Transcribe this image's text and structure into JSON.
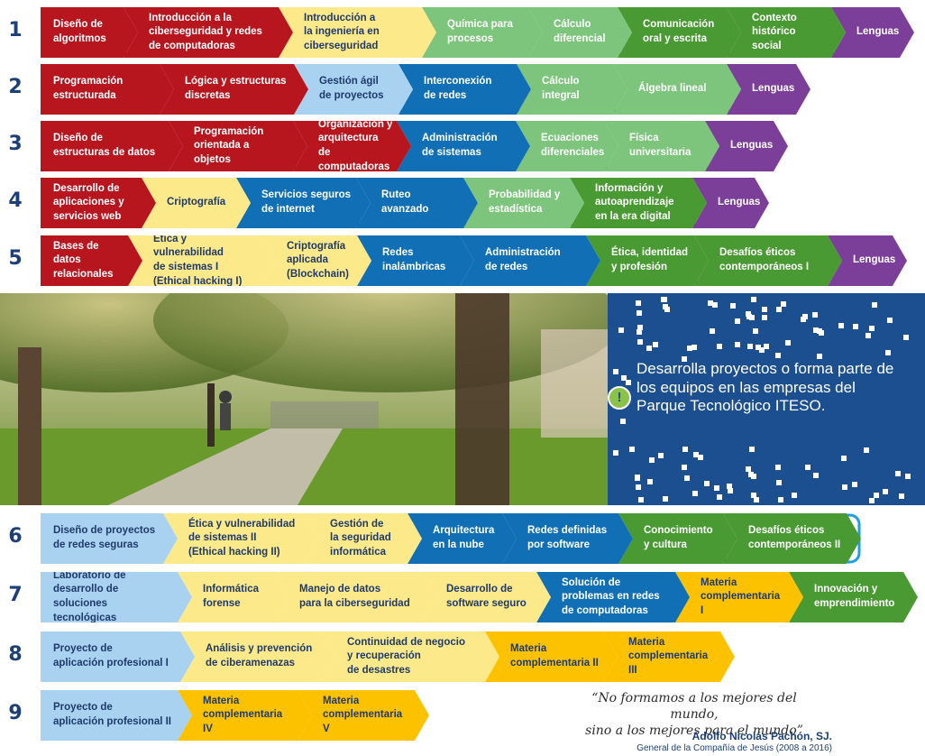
{
  "colors": {
    "red": "#b8161f",
    "yellow": "#fbe98a",
    "light_green": "#7dc47c",
    "green": "#4a9a34",
    "purple": "#7b3f99",
    "light_blue": "#a9d2f0",
    "blue": "#1170b5",
    "gold": "#fcc200",
    "annotation_blue": "#1e9ee8"
  },
  "rows": [
    {
      "number": "1",
      "items": [
        {
          "label": "Diseño de\nalgoritmos",
          "color": "red",
          "crossed": true
        },
        {
          "label": "Introducción a la\nciberseguridad y redes\nde computadoras",
          "color": "red",
          "crossed": true
        },
        {
          "label": "Introducción a\nla ingeniería en\nciberseguridad",
          "color": "yellow",
          "crossed": true
        },
        {
          "label": "Química para\nprocesos",
          "color": "light_green",
          "crossed": false
        },
        {
          "label": "Cálculo\ndiferencial",
          "color": "light_green",
          "crossed": true
        },
        {
          "label": "Comunicación\noral y escrita",
          "color": "green",
          "crossed": true
        },
        {
          "label": "Contexto\nhistórico social",
          "color": "green",
          "crossed": true
        },
        {
          "label": "Lenguas",
          "color": "purple",
          "crossed": false
        }
      ]
    },
    {
      "number": "2",
      "items": [
        {
          "label": "Programación\nestructurada",
          "color": "red",
          "crossed": true
        },
        {
          "label": "Lógica y estructuras\ndiscretas",
          "color": "red",
          "crossed": true
        },
        {
          "label": "Gestión ágil\nde proyectos",
          "color": "light_blue",
          "crossed": true
        },
        {
          "label": "Interconexión\nde redes",
          "color": "blue",
          "crossed": true
        },
        {
          "label": "Cálculo integral",
          "color": "light_green",
          "crossed": true
        },
        {
          "label": "Álgebra lineal",
          "color": "light_green",
          "crossed": true
        },
        {
          "label": "Lenguas",
          "color": "purple",
          "crossed": false
        }
      ]
    },
    {
      "number": "3",
      "items": [
        {
          "label": "Diseño de\nestructuras de datos",
          "color": "red",
          "crossed": true
        },
        {
          "label": "Programación\norientada a\nobjetos",
          "color": "red",
          "crossed": true
        },
        {
          "label": "Organización y\narquitectura de\ncomputadoras",
          "color": "red",
          "crossed": false,
          "circled": true
        },
        {
          "label": "Administración\nde sistemas",
          "color": "blue",
          "crossed": true
        },
        {
          "label": "Ecuaciones\ndiferenciales",
          "color": "light_green",
          "crossed": true
        },
        {
          "label": "Física\nuniversitaria",
          "color": "light_green",
          "crossed": true
        },
        {
          "label": "Lenguas",
          "color": "purple",
          "crossed": false
        }
      ]
    },
    {
      "number": "4",
      "items": [
        {
          "label": "Desarrollo de\naplicaciones y\nservicios web",
          "color": "red",
          "crossed": false,
          "circled": true
        },
        {
          "label": "Criptografía",
          "color": "yellow",
          "crossed": false,
          "circled": true
        },
        {
          "label": "Servicios seguros\nde internet",
          "color": "blue",
          "crossed": true
        },
        {
          "label": "Ruteo avanzado",
          "color": "blue",
          "crossed": true
        },
        {
          "label": "Probabilidad y\nestadística",
          "color": "light_green",
          "crossed": true
        },
        {
          "label": "Información y\nautoaprendizaje\nen la era digital",
          "color": "green",
          "crossed": true
        },
        {
          "label": "Lenguas",
          "color": "purple",
          "crossed": false
        }
      ]
    },
    {
      "number": "5",
      "items": [
        {
          "label": "Bases de datos\nrelacionales",
          "color": "red",
          "crossed": true
        },
        {
          "label": "Ética y vulnerabilidad\nde sistemas I\n(Ethical hacking I)",
          "color": "yellow",
          "crossed": false,
          "circled": true
        },
        {
          "label": "Criptografía\naplicada\n(Blockchain)",
          "color": "yellow",
          "crossed": false
        },
        {
          "label": "Redes\ninalámbricas",
          "color": "blue",
          "crossed": false,
          "circled": true
        },
        {
          "label": "Administración\nde redes",
          "color": "blue",
          "crossed": false,
          "circled": true
        },
        {
          "label": "Ética, identidad\ny profesión",
          "color": "green",
          "crossed": true
        },
        {
          "label": "Desafíos éticos\ncontemporáneos I",
          "color": "green",
          "crossed": true
        },
        {
          "label": "Lenguas",
          "color": "purple",
          "crossed": false
        }
      ]
    },
    {
      "number": "6",
      "items": [
        {
          "label": "Diseño de proyectos\nde redes seguras",
          "color": "light_blue",
          "crossed": false
        },
        {
          "label": "Ética y vulnerabilidad\nde sistemas II\n(Ethical hacking II)",
          "color": "yellow",
          "crossed": false
        },
        {
          "label": "Gestión de\nla seguridad\ninformática",
          "color": "yellow",
          "crossed": false
        },
        {
          "label": "Arquitectura\nen la nube",
          "color": "blue",
          "crossed": false
        },
        {
          "label": "Redes definidas\npor software",
          "color": "blue",
          "crossed": false
        },
        {
          "label": "Conocimiento\ny cultura",
          "color": "green",
          "crossed": true
        },
        {
          "label": "Desafíos éticos\ncontemporáneos II",
          "color": "green",
          "crossed": false,
          "circled": true
        }
      ]
    },
    {
      "number": "7",
      "items": [
        {
          "label": "Laboratorio de\ndesarrollo de soluciones\ntecnológicas",
          "color": "light_blue",
          "crossed": false
        },
        {
          "label": "Informática\nforense",
          "color": "yellow",
          "crossed": false
        },
        {
          "label": "Manejo de datos\npara la ciberseguridad",
          "color": "yellow",
          "crossed": false
        },
        {
          "label": "Desarrollo de\nsoftware seguro",
          "color": "yellow",
          "crossed": false
        },
        {
          "label": "Solución de\nproblemas en redes\nde computadoras",
          "color": "blue",
          "crossed": false
        },
        {
          "label": "Materia\ncomplementaria I",
          "color": "gold",
          "crossed": false
        },
        {
          "label": "Innovación y\nemprendimiento",
          "color": "green",
          "crossed": false
        }
      ]
    },
    {
      "number": "8",
      "items": [
        {
          "label": "Proyecto de\naplicación profesional I",
          "color": "light_blue",
          "crossed": false
        },
        {
          "label": "Análisis y prevención\nde ciberamenazas",
          "color": "yellow",
          "crossed": false
        },
        {
          "label": "Continuidad de negocio\ny recuperación\nde desastres",
          "color": "yellow",
          "crossed": false
        },
        {
          "label": "Materia\ncomplementaria II",
          "color": "gold",
          "crossed": false
        },
        {
          "label": "Materia\ncomplementaria III",
          "color": "gold",
          "crossed": false
        }
      ]
    },
    {
      "number": "9",
      "items": [
        {
          "label": "Proyecto de\naplicación profesional II",
          "color": "light_blue",
          "crossed": false
        },
        {
          "label": "Materia\ncomplementaria IV",
          "color": "gold",
          "crossed": false
        },
        {
          "label": "Materia\ncomplementaria V",
          "color": "gold",
          "crossed": false
        }
      ]
    }
  ],
  "promo": {
    "text": "Desarrolla proyectos o forma parte de los equipos en las empresas del Parque Tecnológico ITESO.",
    "icon": "exclamation-icon"
  },
  "quote": {
    "text": "“No formamos a los mejores del mundo,\nsino a los mejores para el mundo”",
    "author": "Adolfo Nicolás Pachón, SJ.",
    "role": "General de la Compañía de Jesús (2008 a 2016)"
  }
}
